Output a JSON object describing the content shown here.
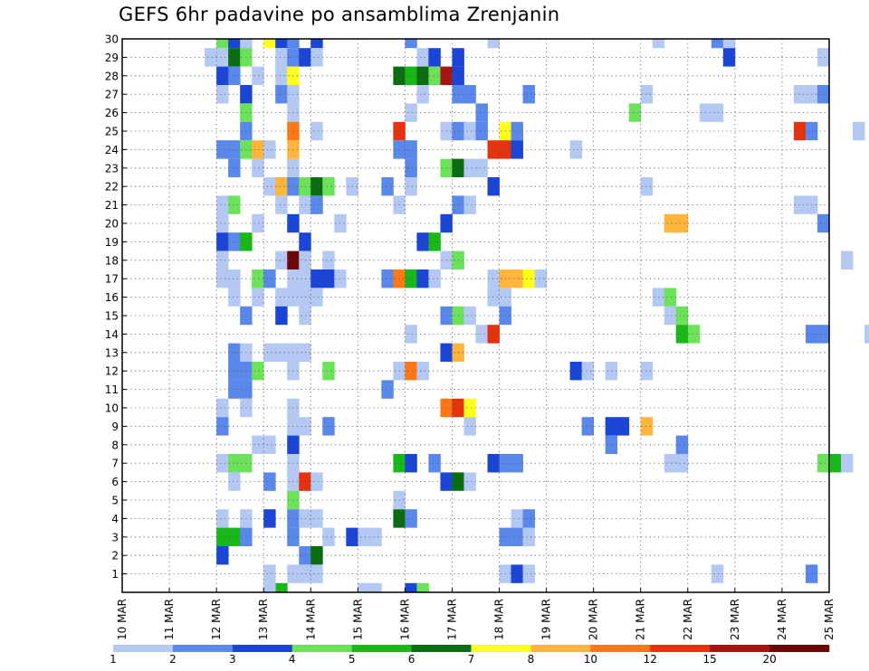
{
  "chart_data": {
    "type": "heatmap",
    "title": "GEFS 6hr padavine po ansamblima Zrenjanin",
    "x_tick_labels": [
      "10 MAR",
      "11 MAR",
      "12 MAR",
      "13 MAR",
      "14 MAR",
      "15 MAR",
      "16 MAR",
      "17 MAR",
      "18 MAR",
      "19 MAR",
      "20 MAR",
      "21 MAR",
      "22 MAR",
      "23 MAR",
      "24 MAR",
      "25 MAR"
    ],
    "y_tick_labels": [
      "1",
      "2",
      "3",
      "4",
      "5",
      "6",
      "7",
      "8",
      "9",
      "10",
      "11",
      "12",
      "13",
      "14",
      "15",
      "16",
      "17",
      "18",
      "19",
      "20",
      "21",
      "22",
      "23",
      "24",
      "25",
      "26",
      "27",
      "28",
      "29",
      "30"
    ],
    "ylim": [
      0,
      30
    ],
    "steps_per_day": 4,
    "grid": true,
    "color_scale": {
      "labels": [
        "1",
        "2",
        "3",
        "4",
        "5",
        "6",
        "7",
        "8",
        "10",
        "12",
        "15",
        "20"
      ],
      "colors": [
        "#b4c8f4",
        "#5a87ea",
        "#1a45d6",
        "#6ce25a",
        "#18b818",
        "#0a6e10",
        "#ffff1e",
        "#ffb43c",
        "#ff7814",
        "#e6320e",
        "#a8140e",
        "#6e0808"
      ]
    },
    "cells": [
      [
        30,
        2.0,
        4
      ],
      [
        30,
        2.25,
        3
      ],
      [
        30,
        2.5,
        1
      ],
      [
        30,
        3.0,
        7
      ],
      [
        30,
        3.25,
        3
      ],
      [
        30,
        3.5,
        2
      ],
      [
        30,
        4.0,
        3
      ],
      [
        30,
        6.0,
        2
      ],
      [
        30,
        7.75,
        1
      ],
      [
        30,
        11.25,
        1
      ],
      [
        30,
        12.5,
        2
      ],
      [
        30,
        12.75,
        1
      ],
      [
        29,
        1.75,
        1
      ],
      [
        29,
        2.0,
        1
      ],
      [
        29,
        2.25,
        6
      ],
      [
        29,
        2.5,
        4
      ],
      [
        29,
        3.25,
        1
      ],
      [
        29,
        3.5,
        2
      ],
      [
        29,
        3.75,
        3
      ],
      [
        29,
        4.0,
        1
      ],
      [
        29,
        6.25,
        1
      ],
      [
        29,
        6.5,
        3
      ],
      [
        29,
        7.0,
        3
      ],
      [
        29,
        12.75,
        3
      ],
      [
        29,
        14.75,
        1
      ],
      [
        28,
        2.0,
        3
      ],
      [
        28,
        2.25,
        2
      ],
      [
        28,
        2.75,
        1
      ],
      [
        28,
        3.25,
        1
      ],
      [
        28,
        3.5,
        7
      ],
      [
        28,
        5.75,
        6
      ],
      [
        28,
        6.0,
        5
      ],
      [
        28,
        6.25,
        6
      ],
      [
        28,
        6.5,
        4
      ],
      [
        28,
        6.75,
        11
      ],
      [
        28,
        7.0,
        3
      ],
      [
        27,
        2.0,
        1
      ],
      [
        27,
        2.5,
        3
      ],
      [
        27,
        3.25,
        2
      ],
      [
        27,
        3.5,
        1
      ],
      [
        27,
        6.25,
        1
      ],
      [
        27,
        7.0,
        2
      ],
      [
        27,
        7.25,
        2
      ],
      [
        27,
        8.5,
        2
      ],
      [
        27,
        11.0,
        1
      ],
      [
        27,
        14.25,
        1
      ],
      [
        27,
        14.5,
        1
      ],
      [
        27,
        14.75,
        2
      ],
      [
        26,
        2.5,
        4
      ],
      [
        26,
        3.5,
        1
      ],
      [
        26,
        6.0,
        1
      ],
      [
        26,
        7.5,
        2
      ],
      [
        26,
        10.75,
        4
      ],
      [
        26,
        12.25,
        1
      ],
      [
        26,
        12.5,
        1
      ],
      [
        25,
        2.5,
        2
      ],
      [
        25,
        3.5,
        9
      ],
      [
        25,
        4.0,
        1
      ],
      [
        25,
        5.75,
        10
      ],
      [
        25,
        6.75,
        1
      ],
      [
        25,
        7.0,
        2
      ],
      [
        25,
        7.25,
        1
      ],
      [
        25,
        7.5,
        2
      ],
      [
        25,
        8.0,
        7
      ],
      [
        25,
        8.25,
        2
      ],
      [
        25,
        14.25,
        10
      ],
      [
        25,
        14.5,
        2
      ],
      [
        25,
        15.5,
        1
      ],
      [
        24,
        2.0,
        2
      ],
      [
        24,
        2.25,
        2
      ],
      [
        24,
        2.5,
        4
      ],
      [
        24,
        2.75,
        8
      ],
      [
        24,
        3.0,
        1
      ],
      [
        24,
        3.5,
        8
      ],
      [
        24,
        5.75,
        2
      ],
      [
        24,
        6.0,
        2
      ],
      [
        24,
        7.75,
        10
      ],
      [
        24,
        8.0,
        10
      ],
      [
        24,
        8.25,
        3
      ],
      [
        24,
        9.5,
        1
      ],
      [
        23,
        2.25,
        2
      ],
      [
        23,
        2.75,
        1
      ],
      [
        23,
        3.5,
        1
      ],
      [
        23,
        6.0,
        2
      ],
      [
        23,
        6.75,
        4
      ],
      [
        23,
        7.0,
        6
      ],
      [
        23,
        7.25,
        1
      ],
      [
        23,
        7.5,
        1
      ],
      [
        22,
        3.0,
        1
      ],
      [
        22,
        3.25,
        8
      ],
      [
        22,
        3.5,
        2
      ],
      [
        22,
        3.75,
        4
      ],
      [
        22,
        4.0,
        6
      ],
      [
        22,
        4.25,
        4
      ],
      [
        22,
        4.75,
        1
      ],
      [
        22,
        5.5,
        2
      ],
      [
        22,
        6.0,
        1
      ],
      [
        22,
        7.75,
        3
      ],
      [
        22,
        11.0,
        1
      ],
      [
        21,
        2.0,
        1
      ],
      [
        21,
        2.25,
        4
      ],
      [
        21,
        3.25,
        1
      ],
      [
        21,
        3.75,
        1
      ],
      [
        21,
        4.0,
        2
      ],
      [
        21,
        5.75,
        1
      ],
      [
        21,
        7.0,
        2
      ],
      [
        21,
        7.25,
        1
      ],
      [
        21,
        14.25,
        1
      ],
      [
        21,
        14.5,
        1
      ],
      [
        20,
        2.0,
        1
      ],
      [
        20,
        2.75,
        1
      ],
      [
        20,
        3.5,
        3
      ],
      [
        20,
        4.5,
        1
      ],
      [
        20,
        6.75,
        3
      ],
      [
        20,
        11.5,
        8
      ],
      [
        20,
        11.75,
        8
      ],
      [
        20,
        14.75,
        2
      ],
      [
        19,
        2.0,
        3
      ],
      [
        19,
        2.25,
        2
      ],
      [
        19,
        2.5,
        5
      ],
      [
        19,
        3.75,
        3
      ],
      [
        19,
        6.25,
        3
      ],
      [
        19,
        6.5,
        5
      ],
      [
        18,
        2.0,
        1
      ],
      [
        18,
        3.25,
        1
      ],
      [
        18,
        3.5,
        12
      ],
      [
        18,
        3.75,
        1
      ],
      [
        18,
        4.25,
        1
      ],
      [
        18,
        6.75,
        1
      ],
      [
        18,
        7.0,
        4
      ],
      [
        18,
        15.25,
        1
      ],
      [
        17,
        2.0,
        1
      ],
      [
        17,
        2.25,
        1
      ],
      [
        17,
        2.75,
        4
      ],
      [
        17,
        3.0,
        2
      ],
      [
        17,
        3.5,
        1
      ],
      [
        17,
        3.75,
        1
      ],
      [
        17,
        4.0,
        3
      ],
      [
        17,
        4.25,
        3
      ],
      [
        17,
        4.5,
        1
      ],
      [
        17,
        5.5,
        2
      ],
      [
        17,
        5.75,
        9
      ],
      [
        17,
        6.0,
        5
      ],
      [
        17,
        6.25,
        3
      ],
      [
        17,
        6.5,
        1
      ],
      [
        17,
        7.75,
        1
      ],
      [
        17,
        8.0,
        8
      ],
      [
        17,
        8.25,
        8
      ],
      [
        17,
        8.5,
        7
      ],
      [
        17,
        8.75,
        1
      ],
      [
        16,
        2.25,
        1
      ],
      [
        16,
        2.75,
        1
      ],
      [
        16,
        3.25,
        1
      ],
      [
        16,
        3.5,
        1
      ],
      [
        16,
        3.75,
        1
      ],
      [
        16,
        4.0,
        1
      ],
      [
        16,
        7.75,
        1
      ],
      [
        16,
        8.0,
        1
      ],
      [
        16,
        11.25,
        1
      ],
      [
        16,
        11.5,
        4
      ],
      [
        15,
        2.5,
        2
      ],
      [
        15,
        3.25,
        3
      ],
      [
        15,
        3.75,
        1
      ],
      [
        15,
        6.75,
        2
      ],
      [
        15,
        7.0,
        4
      ],
      [
        15,
        7.25,
        1
      ],
      [
        15,
        8.0,
        2
      ],
      [
        15,
        11.5,
        1
      ],
      [
        15,
        11.75,
        4
      ],
      [
        14,
        6.0,
        1
      ],
      [
        14,
        7.5,
        1
      ],
      [
        14,
        7.75,
        10
      ],
      [
        14,
        11.75,
        5
      ],
      [
        14,
        12.0,
        4
      ],
      [
        14,
        14.5,
        2
      ],
      [
        14,
        14.75,
        2
      ],
      [
        14,
        15.75,
        1
      ],
      [
        13,
        2.25,
        2
      ],
      [
        13,
        2.5,
        1
      ],
      [
        13,
        3.0,
        1
      ],
      [
        13,
        3.25,
        1
      ],
      [
        13,
        3.5,
        1
      ],
      [
        13,
        3.75,
        1
      ],
      [
        13,
        6.75,
        3
      ],
      [
        13,
        7.0,
        8
      ],
      [
        12,
        2.25,
        2
      ],
      [
        12,
        2.5,
        2
      ],
      [
        12,
        2.75,
        4
      ],
      [
        12,
        3.5,
        1
      ],
      [
        12,
        4.25,
        4
      ],
      [
        12,
        5.75,
        1
      ],
      [
        12,
        6.0,
        9
      ],
      [
        12,
        6.25,
        1
      ],
      [
        12,
        9.5,
        3
      ],
      [
        12,
        9.75,
        1
      ],
      [
        12,
        10.25,
        1
      ],
      [
        12,
        11.0,
        1
      ],
      [
        11,
        2.25,
        2
      ],
      [
        11,
        2.5,
        2
      ],
      [
        11,
        5.5,
        2
      ],
      [
        10,
        2.0,
        1
      ],
      [
        10,
        2.5,
        1
      ],
      [
        10,
        3.5,
        1
      ],
      [
        10,
        6.75,
        9
      ],
      [
        10,
        7.0,
        10
      ],
      [
        10,
        7.25,
        7
      ],
      [
        9,
        2.0,
        2
      ],
      [
        9,
        3.5,
        1
      ],
      [
        9,
        3.75,
        1
      ],
      [
        9,
        4.25,
        2
      ],
      [
        9,
        7.25,
        1
      ],
      [
        9,
        9.75,
        2
      ],
      [
        9,
        10.25,
        3
      ],
      [
        9,
        10.5,
        3
      ],
      [
        9,
        11.0,
        8
      ],
      [
        8,
        2.75,
        1
      ],
      [
        8,
        3.0,
        1
      ],
      [
        8,
        3.5,
        3
      ],
      [
        8,
        10.25,
        2
      ],
      [
        8,
        11.75,
        2
      ],
      [
        7,
        2.0,
        1
      ],
      [
        7,
        2.25,
        4
      ],
      [
        7,
        2.5,
        4
      ],
      [
        7,
        3.5,
        1
      ],
      [
        7,
        5.75,
        5
      ],
      [
        7,
        6.0,
        3
      ],
      [
        7,
        6.5,
        2
      ],
      [
        7,
        7.75,
        3
      ],
      [
        7,
        8.0,
        2
      ],
      [
        7,
        8.25,
        2
      ],
      [
        7,
        11.5,
        1
      ],
      [
        7,
        11.75,
        1
      ],
      [
        7,
        14.75,
        4
      ],
      [
        7,
        15.0,
        5
      ],
      [
        7,
        15.25,
        1
      ],
      [
        6,
        2.25,
        1
      ],
      [
        6,
        3.0,
        2
      ],
      [
        6,
        3.5,
        1
      ],
      [
        6,
        3.75,
        10
      ],
      [
        6,
        4.0,
        1
      ],
      [
        6,
        6.75,
        3
      ],
      [
        6,
        7.0,
        6
      ],
      [
        6,
        7.25,
        1
      ],
      [
        5,
        3.5,
        4
      ],
      [
        5,
        5.75,
        1
      ],
      [
        4,
        2.0,
        1
      ],
      [
        4,
        2.5,
        1
      ],
      [
        4,
        3.0,
        3
      ],
      [
        4,
        3.5,
        2
      ],
      [
        4,
        3.75,
        1
      ],
      [
        4,
        4.0,
        1
      ],
      [
        4,
        5.75,
        6
      ],
      [
        4,
        6.0,
        2
      ],
      [
        4,
        8.25,
        1
      ],
      [
        4,
        8.5,
        2
      ],
      [
        3,
        2.0,
        5
      ],
      [
        3,
        2.25,
        5
      ],
      [
        3,
        2.5,
        2
      ],
      [
        3,
        3.5,
        2
      ],
      [
        3,
        4.25,
        1
      ],
      [
        3,
        4.75,
        3
      ],
      [
        3,
        5.0,
        1
      ],
      [
        3,
        5.25,
        1
      ],
      [
        3,
        8.0,
        2
      ],
      [
        3,
        8.25,
        2
      ],
      [
        3,
        8.5,
        1
      ],
      [
        2,
        2.0,
        3
      ],
      [
        2,
        3.75,
        2
      ],
      [
        2,
        4.0,
        6
      ],
      [
        1,
        3.0,
        1
      ],
      [
        1,
        3.5,
        1
      ],
      [
        1,
        3.75,
        1
      ],
      [
        1,
        4.0,
        1
      ],
      [
        1,
        8.0,
        1
      ],
      [
        1,
        8.25,
        3
      ],
      [
        1,
        8.5,
        1
      ],
      [
        1,
        12.5,
        1
      ],
      [
        1,
        14.5,
        2
      ],
      [
        0,
        3.25,
        5
      ],
      [
        0,
        3.0,
        1
      ],
      [
        0,
        5.0,
        1
      ],
      [
        0,
        5.25,
        1
      ],
      [
        0,
        6.0,
        3
      ],
      [
        0,
        6.25,
        4
      ]
    ]
  }
}
